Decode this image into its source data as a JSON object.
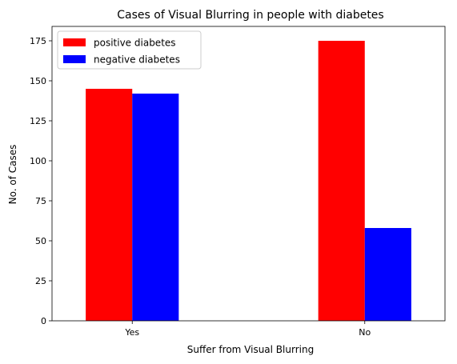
{
  "chart_data": {
    "type": "bar",
    "title": "Cases of Visual Blurring in people with diabetes",
    "xlabel": "Suffer from Visual Blurring",
    "ylabel": "No. of Cases",
    "categories": [
      "Yes",
      "No"
    ],
    "series": [
      {
        "name": "positive diabetes",
        "color": "#ff0000",
        "values": [
          145,
          175
        ]
      },
      {
        "name": "negative diabetes",
        "color": "#0000ff",
        "values": [
          142,
          58
        ]
      }
    ],
    "ylim": [
      0,
      184
    ],
    "yticks": [
      0,
      25,
      50,
      75,
      100,
      125,
      150,
      175
    ],
    "grid": false,
    "legend_position": "top-left"
  }
}
